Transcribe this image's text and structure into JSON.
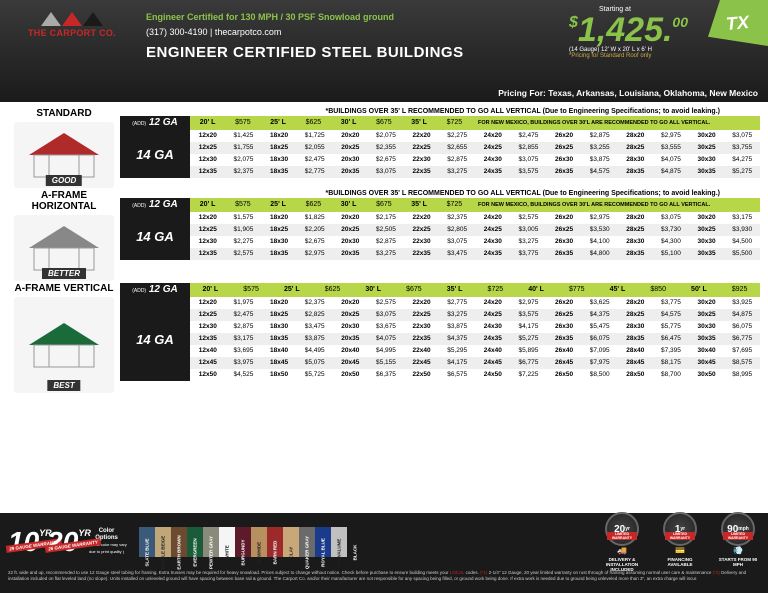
{
  "header": {
    "logo": "THE CARPORT CO.",
    "cert": "Engineer Certified for 130 MPH / 30 PSF Snowload ground",
    "phone": "(317) 300-4190 | thecarpotco.com",
    "title": "ENGINEER CERTIFIED STEEL BUILDINGS",
    "starting": "Starting at",
    "price_whole": "1,425.",
    "price_cents": "00",
    "price_gauge": "(14 Gauge)",
    "price_dims": "12' W x 20' L x 6' H",
    "price_note": "*Pricing for Standard Roof only",
    "state": "TX",
    "pricing_for": "Pricing For: Texas, Arkansas, Louisiana, Oklahoma, New Mexico"
  },
  "note35": "*BUILDINGS OVER 35' L RECOMMENDED TO GO ALL VERTICAL (Due to Engineering Specifications; to avoid leaking.)",
  "nm_note": "FOR NEW MEXICO, BUILDINGS OVER 30'L ARE RECOMMENDED TO GO ALL VERTICAL.",
  "styles": [
    {
      "name": "STANDARD",
      "tag": "GOOD",
      "roof_color": "#b02a2a",
      "ga12": [
        [
          "20' L",
          "$575"
        ],
        [
          "25' L",
          "$625"
        ],
        [
          "30' L",
          "$675"
        ],
        [
          "35' L",
          "$725"
        ]
      ],
      "ga14": [
        [
          [
            "12x20",
            "$1,425"
          ],
          [
            "18x20",
            "$1,725"
          ],
          [
            "20x20",
            "$2,075"
          ],
          [
            "22x20",
            "$2,275"
          ],
          [
            "24x20",
            "$2,475"
          ],
          [
            "26x20",
            "$2,875"
          ],
          [
            "28x20",
            "$2,975"
          ],
          [
            "30x20",
            "$3,075"
          ]
        ],
        [
          [
            "12x25",
            "$1,755"
          ],
          [
            "18x25",
            "$2,055"
          ],
          [
            "20x25",
            "$2,355"
          ],
          [
            "22x25",
            "$2,655"
          ],
          [
            "24x25",
            "$2,855"
          ],
          [
            "26x25",
            "$3,255"
          ],
          [
            "28x25",
            "$3,555"
          ],
          [
            "30x25",
            "$3,755"
          ]
        ],
        [
          [
            "12x30",
            "$2,075"
          ],
          [
            "18x30",
            "$2,475"
          ],
          [
            "20x30",
            "$2,675"
          ],
          [
            "22x30",
            "$2,875"
          ],
          [
            "24x30",
            "$3,075"
          ],
          [
            "26x30",
            "$3,875"
          ],
          [
            "28x30",
            "$4,075"
          ],
          [
            "30x30",
            "$4,275"
          ]
        ],
        [
          [
            "12x35",
            "$2,375"
          ],
          [
            "18x35",
            "$2,775"
          ],
          [
            "20x35",
            "$3,075"
          ],
          [
            "22x35",
            "$3,275"
          ],
          [
            "24x35",
            "$3,575"
          ],
          [
            "26x35",
            "$4,575"
          ],
          [
            "28x35",
            "$4,875"
          ],
          [
            "30x35",
            "$5,275"
          ]
        ]
      ]
    },
    {
      "name": "A-FRAME HORIZONTAL",
      "tag": "BETTER",
      "roof_color": "#888",
      "ga12": [
        [
          "20' L",
          "$575"
        ],
        [
          "25' L",
          "$625"
        ],
        [
          "30' L",
          "$675"
        ],
        [
          "35' L",
          "$725"
        ]
      ],
      "ga14": [
        [
          [
            "12x20",
            "$1,575"
          ],
          [
            "18x20",
            "$1,825"
          ],
          [
            "20x20",
            "$2,175"
          ],
          [
            "22x20",
            "$2,375"
          ],
          [
            "24x20",
            "$2,575"
          ],
          [
            "26x20",
            "$2,975"
          ],
          [
            "28x20",
            "$3,075"
          ],
          [
            "30x20",
            "$3,175"
          ]
        ],
        [
          [
            "12x25",
            "$1,905"
          ],
          [
            "18x25",
            "$2,205"
          ],
          [
            "20x25",
            "$2,505"
          ],
          [
            "22x25",
            "$2,805"
          ],
          [
            "24x25",
            "$3,005"
          ],
          [
            "26x25",
            "$3,530"
          ],
          [
            "28x25",
            "$3,730"
          ],
          [
            "30x25",
            "$3,930"
          ]
        ],
        [
          [
            "12x30",
            "$2,275"
          ],
          [
            "18x30",
            "$2,675"
          ],
          [
            "20x30",
            "$2,875"
          ],
          [
            "22x30",
            "$3,075"
          ],
          [
            "24x30",
            "$3,275"
          ],
          [
            "26x30",
            "$4,100"
          ],
          [
            "28x30",
            "$4,300"
          ],
          [
            "30x30",
            "$4,500"
          ]
        ],
        [
          [
            "12x35",
            "$2,575"
          ],
          [
            "18x35",
            "$2,975"
          ],
          [
            "20x35",
            "$3,275"
          ],
          [
            "22x35",
            "$3,475"
          ],
          [
            "24x35",
            "$3,775"
          ],
          [
            "26x35",
            "$4,800"
          ],
          [
            "28x35",
            "$5,100"
          ],
          [
            "30x35",
            "$5,500"
          ]
        ]
      ]
    },
    {
      "name": "A-FRAME VERTICAL",
      "tag": "BEST",
      "roof_color": "#1a6b3a",
      "ga12_extra": [
        [
          "40' L",
          "$775"
        ],
        [
          "45' L",
          "$850"
        ],
        [
          "50' L",
          "$925"
        ]
      ],
      "ga12": [
        [
          "20' L",
          "$575"
        ],
        [
          "25' L",
          "$625"
        ],
        [
          "30' L",
          "$675"
        ],
        [
          "35' L",
          "$725"
        ]
      ],
      "ga14": [
        [
          [
            "12x20",
            "$1,975"
          ],
          [
            "18x20",
            "$2,375"
          ],
          [
            "20x20",
            "$2,575"
          ],
          [
            "22x20",
            "$2,775"
          ],
          [
            "24x20",
            "$2,975"
          ],
          [
            "26x20",
            "$3,625"
          ],
          [
            "28x20",
            "$3,775"
          ],
          [
            "30x20",
            "$3,925"
          ]
        ],
        [
          [
            "12x25",
            "$2,475"
          ],
          [
            "18x25",
            "$2,825"
          ],
          [
            "20x25",
            "$3,075"
          ],
          [
            "22x25",
            "$3,275"
          ],
          [
            "24x25",
            "$3,575"
          ],
          [
            "26x25",
            "$4,375"
          ],
          [
            "28x25",
            "$4,575"
          ],
          [
            "30x25",
            "$4,875"
          ]
        ],
        [
          [
            "12x30",
            "$2,875"
          ],
          [
            "18x30",
            "$3,475"
          ],
          [
            "20x30",
            "$3,675"
          ],
          [
            "22x30",
            "$3,875"
          ],
          [
            "24x30",
            "$4,175"
          ],
          [
            "26x30",
            "$5,475"
          ],
          [
            "28x30",
            "$5,775"
          ],
          [
            "30x30",
            "$6,075"
          ]
        ],
        [
          [
            "12x35",
            "$3,175"
          ],
          [
            "18x35",
            "$3,875"
          ],
          [
            "20x35",
            "$4,075"
          ],
          [
            "22x35",
            "$4,375"
          ],
          [
            "24x35",
            "$5,275"
          ],
          [
            "26x35",
            "$6,075"
          ],
          [
            "28x35",
            "$6,475"
          ],
          [
            "30x35",
            "$6,775"
          ]
        ],
        [
          [
            "12x40",
            "$3,695"
          ],
          [
            "18x40",
            "$4,495"
          ],
          [
            "20x40",
            "$4,995"
          ],
          [
            "22x40",
            "$5,295"
          ],
          [
            "24x40",
            "$5,895"
          ],
          [
            "26x40",
            "$7,095"
          ],
          [
            "28x40",
            "$7,395"
          ],
          [
            "30x40",
            "$7,695"
          ]
        ],
        [
          [
            "12x45",
            "$3,975"
          ],
          [
            "18x45",
            "$5,075"
          ],
          [
            "20x45",
            "$5,155"
          ],
          [
            "22x45",
            "$4,175"
          ],
          [
            "24x45",
            "$6,775"
          ],
          [
            "26x45",
            "$7,975"
          ],
          [
            "28x45",
            "$8,175"
          ],
          [
            "30x45",
            "$8,575"
          ]
        ],
        [
          [
            "12x50",
            "$4,525"
          ],
          [
            "18x50",
            "$5,725"
          ],
          [
            "20x50",
            "$6,375"
          ],
          [
            "22x50",
            "$6,575"
          ],
          [
            "24x50",
            "$7,225"
          ],
          [
            "26x50",
            "$8,500"
          ],
          [
            "28x50",
            "$8,700"
          ],
          [
            "30x50",
            "$8,995"
          ]
        ]
      ]
    }
  ],
  "footer": {
    "warranty": [
      {
        "yr": "10",
        "txt": "29 GAUGE WARRANTY"
      },
      {
        "yr": "20",
        "txt": "26 GAUGE WARRANTY"
      }
    ],
    "color_label": "Color\nOptions",
    "color_note": "( Actual color may vary\ndue to print quality )",
    "colors": [
      {
        "name": "SLATE BLUE",
        "hex": "#3b5a7a"
      },
      {
        "name": "PEBBLE BEIGE",
        "hex": "#bfa77a"
      },
      {
        "name": "EARTH BROWN",
        "hex": "#6b4a2f"
      },
      {
        "name": "EVERGREEN",
        "hex": "#1a5c3a"
      },
      {
        "name": "PEWTER GRAY",
        "hex": "#8a8a7a"
      },
      {
        "name": "WHITE",
        "hex": "#f5f5f5"
      },
      {
        "name": "BURGUNDY",
        "hex": "#5c1a2a"
      },
      {
        "name": "RAWHIDE",
        "hex": "#b89060"
      },
      {
        "name": "BARN RED",
        "hex": "#9c2a2a"
      },
      {
        "name": "CLAY",
        "hex": "#c8a878"
      },
      {
        "name": "QUAKER GRAY",
        "hex": "#6a6a6a"
      },
      {
        "name": "ROYAL BLUE",
        "hex": "#1a3a8c"
      },
      {
        "name": "GALVALUME",
        "hex": "#c0c0c0"
      },
      {
        "name": "BLACK",
        "hex": "#1a1a1a"
      }
    ],
    "badges": [
      {
        "top": "12 GAUGE",
        "val": "20",
        "unit": "yr",
        "band": "LIMITED WARRANTY",
        "icon": "🚚",
        "label": "DELIVERY & INSTALLATION INCLUDED"
      },
      {
        "top": "WORKMANSHIP",
        "val": "1",
        "unit": "yr",
        "band": "LIMITED WARRANTY",
        "icon": "💳",
        "label": "FINANCING AVAILABLE"
      },
      {
        "top": "WIND WARRANTY",
        "val": "90",
        "unit": "mph",
        "band": "LIMITED WARRANTY",
        "icon": "💨",
        "label": "STARTS FROM 90 MPH"
      }
    ],
    "fine": "22 ft. wide and up, recommended to use 12 Gauge steel tubing for framing. Extra trusses may be required for heavy snowload. Prices subject to change without notice. Check before purchase to ensure building meets your LOCAL codes. (*1) 2-1/4\" 12 Gauge, 20 year limited warranty on rust through of framing assuming normal user care & maintenance (*2) Delivery and installation included on flat leveled land (no slope). Units installed on unleveled ground will have spacing between base rail & ground. The Carport Co. and/or their manufacturer are not responsible for any spacing being filled, or ground work being done. If extra work is needed due to ground being unleveled more than 3\", an extra charge will incur."
  }
}
